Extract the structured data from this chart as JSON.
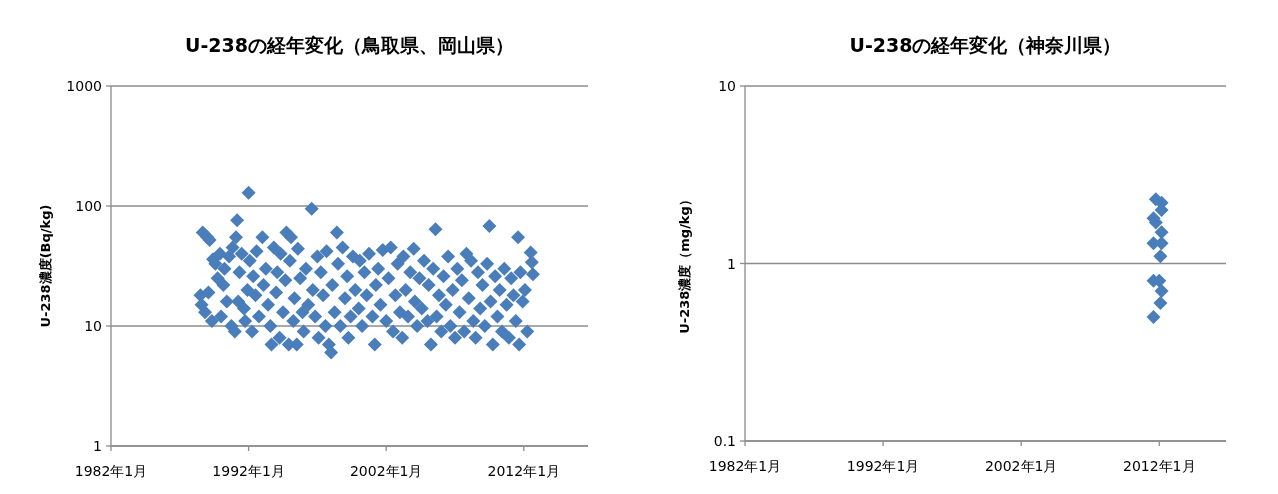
{
  "chart_data": [
    {
      "type": "scatter",
      "title": "U-238の経年変化（鳥取県、岡山県）",
      "ylabel": "U-238濃度(Bq/kg)",
      "log": true,
      "grid": "y",
      "marker": "diamond",
      "xlim": [
        "1982-01",
        "2016-09"
      ],
      "xticks": [
        {
          "value": "1982-01",
          "label": "1982年1月"
        },
        {
          "value": "1992-01",
          "label": "1992年1月"
        },
        {
          "value": "2002-01",
          "label": "2002年1月"
        },
        {
          "value": "2012-01",
          "label": "2012年1月"
        }
      ],
      "ylim": [
        1,
        1000
      ],
      "yticks": [
        1,
        10,
        100,
        1000
      ],
      "series": [
        {
          "color": "#4a7ebb",
          "x": [
            "1988-07",
            "1988-08",
            "1988-09",
            "1988-11",
            "1989-01",
            "1989-02",
            "1989-03",
            "1989-05",
            "1989-06",
            "1989-08",
            "1989-10",
            "1989-12",
            "1990-01",
            "1990-03",
            "1990-04",
            "1990-06",
            "1990-08",
            "1990-10",
            "1990-11",
            "1991-01",
            "1991-02",
            "1991-03",
            "1991-04",
            "1991-05",
            "1991-07",
            "1991-09",
            "1991-10",
            "1991-12",
            "1992-01",
            "1992-02",
            "1992-04",
            "1992-05",
            "1992-07",
            "1992-08",
            "1992-10",
            "1993-01",
            "1993-02",
            "1993-04",
            "1993-06",
            "1993-08",
            "1993-09",
            "1993-11",
            "1994-01",
            "1994-02",
            "1994-04",
            "1994-05",
            "1994-07",
            "1994-09",
            "1994-10",
            "1994-12",
            "1995-01",
            "1995-02",
            "1995-04",
            "1995-05",
            "1995-07",
            "1995-08",
            "1995-10",
            "1995-12",
            "1996-01",
            "1996-03",
            "1996-05",
            "1996-08",
            "1996-09",
            "1996-11",
            "1997-01",
            "1997-02",
            "1997-04",
            "1997-06",
            "1997-08",
            "1997-09",
            "1997-11",
            "1998-01",
            "1998-02",
            "1998-04",
            "1998-06",
            "1998-07",
            "1998-09",
            "1998-11",
            "1999-01",
            "1999-03",
            "1999-04",
            "1999-06",
            "1999-08",
            "1999-10",
            "2000-01",
            "2000-02",
            "2000-04",
            "2000-06",
            "2000-08",
            "2000-10",
            "2001-01",
            "2001-03",
            "2001-04",
            "2001-06",
            "2001-08",
            "2001-10",
            "2002-01",
            "2002-03",
            "2002-05",
            "2002-07",
            "2002-09",
            "2002-11",
            "2003-01",
            "2003-03",
            "2003-04",
            "2003-06",
            "2003-08",
            "2003-10",
            "2004-01",
            "2004-02",
            "2004-04",
            "2004-06",
            "2004-08",
            "2004-10",
            "2005-01",
            "2005-02",
            "2005-04",
            "2005-06",
            "2005-08",
            "2005-09",
            "2005-11",
            "2006-01",
            "2006-03",
            "2006-05",
            "2006-07",
            "2006-09",
            "2006-11",
            "2007-01",
            "2007-03",
            "2007-05",
            "2007-07",
            "2007-09",
            "2007-11",
            "2008-01",
            "2008-03",
            "2008-05",
            "2008-07",
            "2008-09",
            "2008-11",
            "2009-01",
            "2009-03",
            "2009-05",
            "2009-07",
            "2009-08",
            "2009-10",
            "2009-12",
            "2010-02",
            "2010-04",
            "2010-06",
            "2010-08",
            "2010-10",
            "2010-12",
            "2011-02",
            "2011-04",
            "2011-06",
            "2011-08",
            "2011-09",
            "2011-10",
            "2011-12",
            "2012-02",
            "2012-04",
            "2012-07",
            "2012-08",
            "2012-09"
          ],
          "values": [
            18,
            15,
            60,
            13,
            55,
            19,
            52,
            11,
            36,
            33,
            25,
            40,
            12,
            22,
            30,
            16,
            38,
            10,
            45,
            9,
            55,
            76,
            16,
            28,
            40,
            14,
            11,
            20,
            129,
            35,
            9,
            26,
            18,
            42,
            12,
            55,
            22,
            30,
            15,
            10,
            7,
            45,
            19,
            28,
            8,
            40,
            13,
            24,
            60,
            7,
            35,
            55,
            11,
            17,
            7,
            44,
            25,
            13,
            9,
            30,
            15,
            95,
            20,
            12,
            38,
            8,
            28,
            18,
            10,
            42,
            7,
            6,
            22,
            13,
            60,
            33,
            10,
            45,
            17,
            26,
            8,
            12,
            38,
            20,
            14,
            35,
            10,
            28,
            18,
            40,
            12,
            7,
            22,
            30,
            15,
            43,
            11,
            25,
            45,
            9,
            18,
            33,
            13,
            8,
            38,
            20,
            12,
            28,
            44,
            16,
            10,
            25,
            14,
            35,
            11,
            22,
            7,
            30,
            64,
            12,
            18,
            9,
            26,
            15,
            38,
            10,
            20,
            8,
            30,
            13,
            24,
            9,
            40,
            17,
            35,
            11,
            8,
            28,
            14,
            22,
            10,
            33,
            68,
            16,
            7,
            26,
            12,
            20,
            9,
            30,
            15,
            8,
            25,
            18,
            11,
            55,
            7,
            28,
            16,
            20,
            9,
            41,
            34,
            27
          ]
        }
      ]
    },
    {
      "type": "scatter",
      "title": "U-238の経年変化（神奈川県）",
      "ylabel": "U-238濃度（mg/kg）",
      "log": true,
      "grid": "y",
      "marker": "diamond",
      "xlim": [
        "1982-01",
        "2016-11"
      ],
      "xticks": [
        {
          "value": "1982-01",
          "label": "1982年1月"
        },
        {
          "value": "1992-01",
          "label": "1992年1月"
        },
        {
          "value": "2002-01",
          "label": "2002年1月"
        },
        {
          "value": "2012-01",
          "label": "2012年1月"
        }
      ],
      "ylim": [
        0.1,
        10
      ],
      "yticks": [
        0.1,
        1,
        10
      ],
      "series": [
        {
          "color": "#4a7ebb",
          "x": [
            "2011-10",
            "2012-03",
            "2012-03",
            "2011-08",
            "2011-10",
            "2012-03",
            "2011-08",
            "2012-03",
            "2012-02",
            "2011-08",
            "2012-01",
            "2012-03",
            "2012-02",
            "2011-08"
          ],
          "values": [
            2.3,
            2.2,
            2.0,
            1.8,
            1.7,
            1.5,
            1.3,
            1.3,
            1.1,
            0.8,
            0.8,
            0.7,
            0.6,
            0.5
          ]
        }
      ]
    }
  ]
}
